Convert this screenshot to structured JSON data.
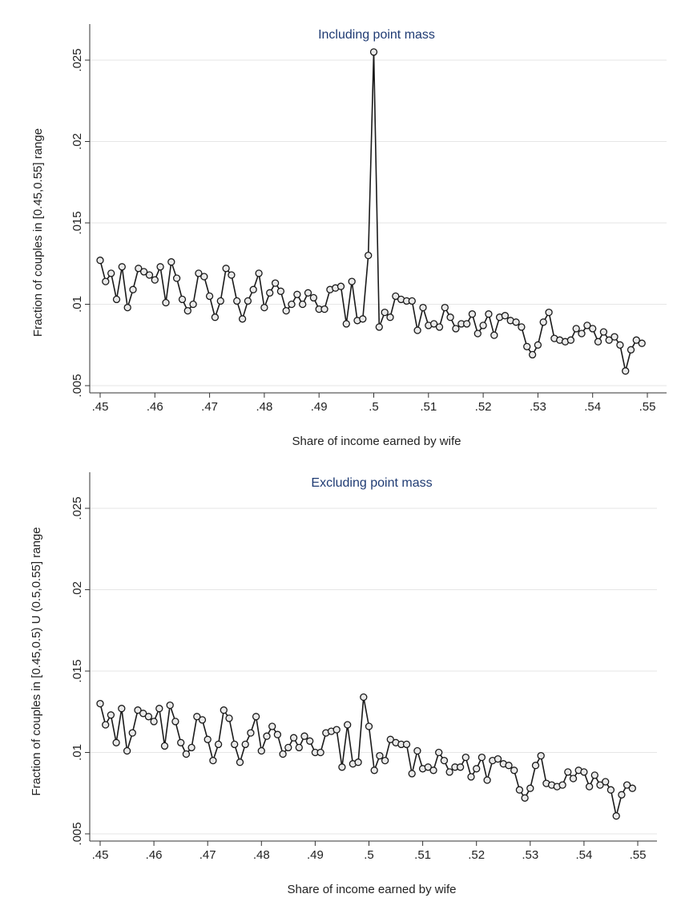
{
  "chart_data": [
    {
      "type": "line",
      "title": "Including point mass",
      "xlabel": "Share of income earned by wife",
      "ylabel": "Fraction of couples in [0.45,0.55] range",
      "xlim": [
        0.45,
        0.55
      ],
      "ylim": [
        0.005,
        0.025
      ],
      "xticks": [
        ".45",
        ".46",
        ".47",
        ".48",
        ".49",
        ".5",
        ".51",
        ".52",
        ".53",
        ".54",
        ".55"
      ],
      "yticks": [
        ".005",
        ".01",
        ".015",
        ".02",
        ".025"
      ],
      "grid": true,
      "legend": "none",
      "series": [
        {
          "x": [
            0.45,
            0.451,
            0.452,
            0.453,
            0.454,
            0.455,
            0.456,
            0.457,
            0.458,
            0.459,
            0.46,
            0.461,
            0.462,
            0.463,
            0.464,
            0.465,
            0.466,
            0.467,
            0.468,
            0.469,
            0.47,
            0.471,
            0.472,
            0.473,
            0.474,
            0.475,
            0.476,
            0.477,
            0.478,
            0.479,
            0.48,
            0.481,
            0.482,
            0.483,
            0.484,
            0.485,
            0.486,
            0.487,
            0.488,
            0.489,
            0.49,
            0.491,
            0.492,
            0.493,
            0.494,
            0.495,
            0.496,
            0.497,
            0.498,
            0.499,
            0.5,
            0.501,
            0.502,
            0.503,
            0.504,
            0.505,
            0.506,
            0.507,
            0.508,
            0.509,
            0.51,
            0.511,
            0.512,
            0.513,
            0.514,
            0.515,
            0.516,
            0.517,
            0.518,
            0.519,
            0.52,
            0.521,
            0.522,
            0.523,
            0.524,
            0.525,
            0.526,
            0.527,
            0.528,
            0.529,
            0.53,
            0.531,
            0.532,
            0.533,
            0.534,
            0.535,
            0.536,
            0.537,
            0.538,
            0.539,
            0.54,
            0.541,
            0.542,
            0.543,
            0.544,
            0.545,
            0.546,
            0.547,
            0.548,
            0.549
          ],
          "values": [
            0.0127,
            0.0114,
            0.0119,
            0.0103,
            0.0123,
            0.0098,
            0.0109,
            0.0122,
            0.012,
            0.0118,
            0.0115,
            0.0123,
            0.0101,
            0.0126,
            0.0116,
            0.0103,
            0.0096,
            0.01,
            0.0119,
            0.0117,
            0.0105,
            0.0092,
            0.0102,
            0.0122,
            0.0118,
            0.0102,
            0.0091,
            0.0102,
            0.0109,
            0.0119,
            0.0098,
            0.0107,
            0.0113,
            0.0108,
            0.0096,
            0.01,
            0.0106,
            0.01,
            0.0107,
            0.0104,
            0.0097,
            0.0097,
            0.0109,
            0.011,
            0.0111,
            0.0088,
            0.0114,
            0.009,
            0.0091,
            0.013,
            0.0255,
            0.0086,
            0.0095,
            0.0092,
            0.0105,
            0.0103,
            0.0102,
            0.0102,
            0.0084,
            0.0098,
            0.0087,
            0.0088,
            0.0086,
            0.0098,
            0.0092,
            0.0085,
            0.0088,
            0.0088,
            0.0094,
            0.0082,
            0.0087,
            0.0094,
            0.0081,
            0.0092,
            0.0093,
            0.009,
            0.0089,
            0.0086,
            0.0074,
            0.0069,
            0.0075,
            0.0089,
            0.0095,
            0.0079,
            0.0078,
            0.0077,
            0.0078,
            0.0085,
            0.0082,
            0.0087,
            0.0085,
            0.0077,
            0.0083,
            0.0078,
            0.008,
            0.0075,
            0.0059,
            0.0072,
            0.0078,
            0.0076
          ]
        }
      ]
    },
    {
      "type": "line",
      "title": "Excluding point mass",
      "xlabel": "Share of income earned by wife",
      "ylabel": "Fraction of couples in [0.45,0.5) U (0.5,0.55] range",
      "xlim": [
        0.45,
        0.55
      ],
      "ylim": [
        0.005,
        0.025
      ],
      "xticks": [
        ".45",
        ".46",
        ".47",
        ".48",
        ".49",
        ".5",
        ".51",
        ".52",
        ".53",
        ".54",
        ".55"
      ],
      "yticks": [
        ".005",
        ".01",
        ".015",
        ".02",
        ".025"
      ],
      "grid": true,
      "legend": "none",
      "series": [
        {
          "x": [
            0.45,
            0.451,
            0.452,
            0.453,
            0.454,
            0.455,
            0.456,
            0.457,
            0.458,
            0.459,
            0.46,
            0.461,
            0.462,
            0.463,
            0.464,
            0.465,
            0.466,
            0.467,
            0.468,
            0.469,
            0.47,
            0.471,
            0.472,
            0.473,
            0.474,
            0.475,
            0.476,
            0.477,
            0.478,
            0.479,
            0.48,
            0.481,
            0.482,
            0.483,
            0.484,
            0.485,
            0.486,
            0.487,
            0.488,
            0.489,
            0.49,
            0.491,
            0.492,
            0.493,
            0.494,
            0.495,
            0.496,
            0.497,
            0.498,
            0.499,
            0.5,
            0.501,
            0.502,
            0.503,
            0.504,
            0.505,
            0.506,
            0.507,
            0.508,
            0.509,
            0.51,
            0.511,
            0.512,
            0.513,
            0.514,
            0.515,
            0.516,
            0.517,
            0.518,
            0.519,
            0.52,
            0.521,
            0.522,
            0.523,
            0.524,
            0.525,
            0.526,
            0.527,
            0.528,
            0.529,
            0.53,
            0.531,
            0.532,
            0.533,
            0.534,
            0.535,
            0.536,
            0.537,
            0.538,
            0.539,
            0.54,
            0.541,
            0.542,
            0.543,
            0.544,
            0.545,
            0.546,
            0.547,
            0.548,
            0.549
          ],
          "values": [
            0.013,
            0.0117,
            0.0123,
            0.0106,
            0.0127,
            0.0101,
            0.0112,
            0.0126,
            0.0124,
            0.0122,
            0.0119,
            0.0127,
            0.0104,
            0.0129,
            0.0119,
            0.0106,
            0.0099,
            0.0103,
            0.0122,
            0.012,
            0.0108,
            0.0095,
            0.0105,
            0.0126,
            0.0121,
            0.0105,
            0.0094,
            0.0105,
            0.0112,
            0.0122,
            0.0101,
            0.011,
            0.0116,
            0.0111,
            0.0099,
            0.0103,
            0.0109,
            0.0103,
            0.011,
            0.0107,
            0.01,
            0.01,
            0.0112,
            0.0113,
            0.0114,
            0.0091,
            0.0117,
            0.0093,
            0.0094,
            0.0134,
            0.0116,
            0.0089,
            0.0098,
            0.0095,
            0.0108,
            0.0106,
            0.0105,
            0.0105,
            0.0087,
            0.0101,
            0.009,
            0.0091,
            0.0089,
            0.01,
            0.0095,
            0.0088,
            0.0091,
            0.0091,
            0.0097,
            0.0085,
            0.009,
            0.0097,
            0.0083,
            0.0095,
            0.0096,
            0.0093,
            0.0092,
            0.0089,
            0.0077,
            0.0072,
            0.0078,
            0.0092,
            0.0098,
            0.0081,
            0.008,
            0.0079,
            0.008,
            0.0088,
            0.0084,
            0.0089,
            0.0088,
            0.0079,
            0.0086,
            0.008,
            0.0082,
            0.0077,
            0.0061,
            0.0074,
            0.008,
            0.0078
          ]
        }
      ]
    }
  ]
}
